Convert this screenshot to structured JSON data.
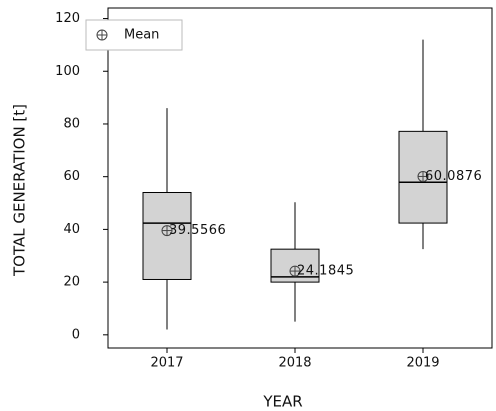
{
  "chart_data": {
    "type": "box",
    "x_label": "YEAR",
    "y_label": "TOTAL GENERATION [t]",
    "categories": [
      "2017",
      "2018",
      "2019"
    ],
    "min": [
      2,
      5,
      32.5
    ],
    "q1": [
      21,
      20,
      42.4
    ],
    "median": [
      42.4,
      22,
      57.9
    ],
    "q3": [
      54,
      32.5,
      77.2
    ],
    "max": [
      86,
      50.3,
      112
    ],
    "means": {
      "name": "Mean",
      "values": [
        39.5566,
        24.1845,
        60.0876
      ],
      "value_labels": [
        "39.5566",
        "24.1845",
        "60.0876"
      ]
    },
    "box_color": "#d3d3d3",
    "ylim": [
      -5,
      124
    ],
    "yticks": [
      0,
      20,
      40,
      60,
      80,
      100,
      120
    ],
    "legend": "upper left"
  }
}
